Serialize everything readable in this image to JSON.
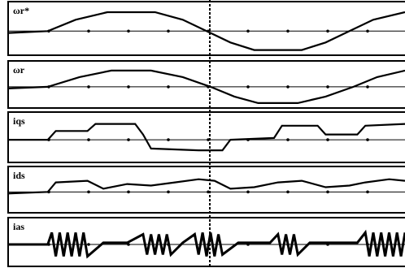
{
  "chart_data": [
    {
      "type": "line",
      "title": "ωr*",
      "xlim": [
        0,
        100
      ],
      "ylim": [
        -1.2,
        1.2
      ],
      "x": [
        0,
        10,
        17,
        25,
        37,
        44,
        50,
        56,
        62,
        74,
        80,
        86,
        92,
        100
      ],
      "values": [
        -0.1,
        0,
        0.6,
        1,
        1,
        0.6,
        0,
        -0.6,
        -1,
        -1,
        -0.6,
        0,
        0.6,
        1
      ]
    },
    {
      "type": "line",
      "title": "ωr",
      "xlim": [
        0,
        100
      ],
      "ylim": [
        -1.2,
        1.2
      ],
      "x": [
        0,
        10,
        18,
        26,
        36,
        44,
        51,
        57,
        63,
        73,
        80,
        87,
        93,
        100
      ],
      "values": [
        -0.1,
        0,
        0.6,
        1,
        1,
        0.6,
        0,
        -0.6,
        -1,
        -1,
        -0.6,
        0,
        0.6,
        1
      ]
    },
    {
      "type": "line",
      "title": "iqs",
      "xlim": [
        0,
        100
      ],
      "ylim": [
        -1.2,
        1.2
      ],
      "x": [
        0,
        10,
        12,
        20,
        22,
        32,
        34,
        36,
        48,
        50,
        54,
        56,
        67,
        69,
        78,
        80,
        88,
        90,
        100
      ],
      "values": [
        0,
        0,
        0.5,
        0.5,
        0.9,
        0.9,
        0.3,
        -0.5,
        -0.6,
        -0.6,
        -0.6,
        0,
        0.1,
        0.8,
        0.8,
        0.3,
        0.3,
        0.8,
        0.9
      ]
    },
    {
      "type": "line",
      "title": "ids",
      "xlim": [
        0,
        100
      ],
      "ylim": [
        -1.2,
        1.2
      ],
      "x": [
        0,
        10,
        12,
        20,
        24,
        30,
        36,
        42,
        48,
        52,
        56,
        62,
        68,
        74,
        80,
        86,
        90,
        96,
        100
      ],
      "values": [
        -0.1,
        0,
        0.6,
        0.7,
        0.2,
        0.5,
        0.4,
        0.6,
        0.8,
        0.7,
        0.2,
        0.3,
        0.6,
        0.7,
        0.3,
        0.4,
        0.6,
        0.8,
        0.7
      ]
    },
    {
      "type": "line",
      "title": "ias",
      "xlim": [
        0,
        100
      ],
      "ylim": [
        -1.2,
        1.2
      ],
      "x": [
        0,
        10,
        11,
        12,
        13,
        14,
        15,
        16,
        17,
        18,
        19,
        20,
        24,
        30,
        34,
        35,
        36,
        37,
        38,
        39,
        40,
        41,
        44,
        47,
        48,
        49,
        50,
        51,
        52,
        53,
        54,
        58,
        66,
        68,
        69,
        70,
        71,
        72,
        73,
        76,
        88,
        90,
        91,
        92,
        93,
        94,
        95,
        96,
        97,
        98,
        99,
        100
      ],
      "values": [
        0,
        0,
        0.7,
        -0.7,
        0.7,
        -0.7,
        0.7,
        -0.7,
        0.7,
        -0.7,
        0.7,
        -0.7,
        0.1,
        0.1,
        0.6,
        -0.6,
        0.6,
        -0.6,
        0.6,
        -0.6,
        0.6,
        -0.6,
        0.1,
        0.6,
        -0.6,
        0.7,
        -0.7,
        0.7,
        -0.7,
        0.6,
        -0.6,
        0.1,
        0.1,
        0.6,
        -0.6,
        0.6,
        -0.6,
        0.6,
        -0.6,
        0.1,
        0.1,
        0.7,
        -0.7,
        0.7,
        -0.7,
        0.7,
        -0.7,
        0.7,
        -0.7,
        0.7,
        -0.7,
        0.7
      ]
    }
  ]
}
